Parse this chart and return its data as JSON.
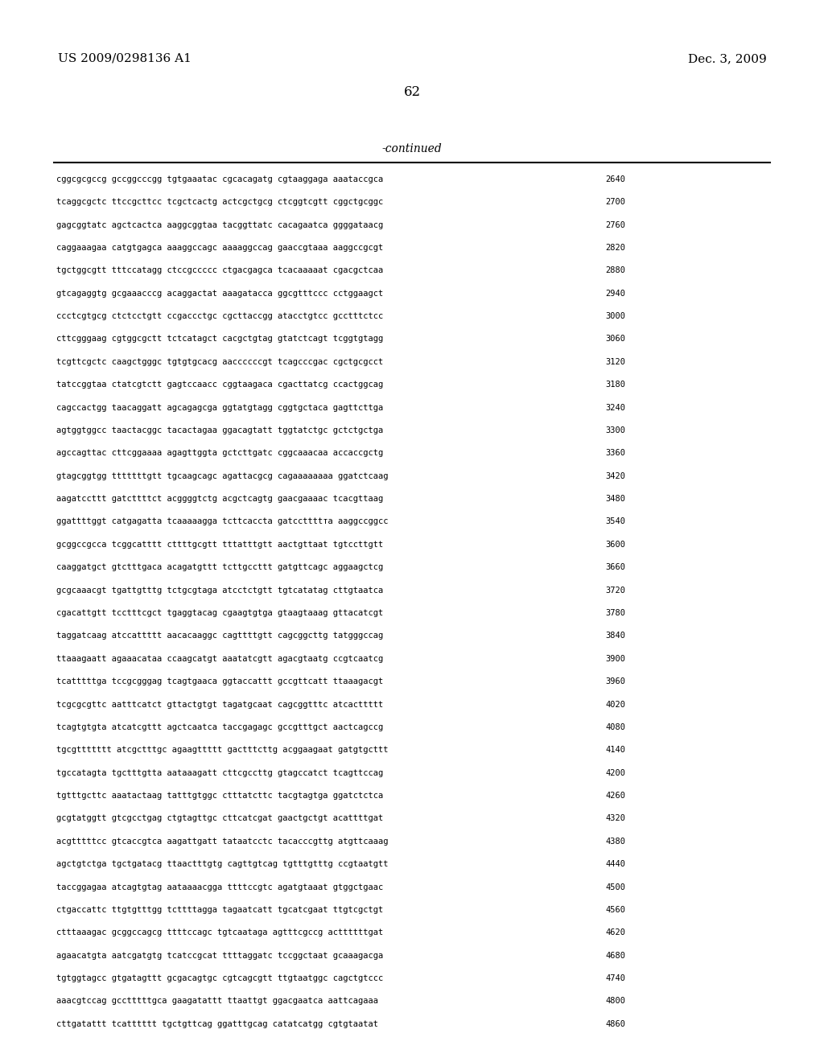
{
  "header_left": "US 2009/0298136 A1",
  "header_right": "Dec. 3, 2009",
  "page_number": "62",
  "continued_label": "-continued",
  "background_color": "#ffffff",
  "text_color": "#000000",
  "sequence_lines": [
    [
      "cggcgcgccg gccggcccgg tgtgaaatac cgcacagatg cgtaaggaga aaataccgca",
      "2640"
    ],
    [
      "tcaggcgctc ttccgcttcc tcgctcactg actcgctgcg ctcggtcgtt cggctgcggc",
      "2700"
    ],
    [
      "gagcggtatc agctcactca aaggcggtaa tacggttatc cacagaatca ggggataacg",
      "2760"
    ],
    [
      "caggaaagaa catgtgagca aaaggccagc aaaaggccag gaaccgtaaa aaggccgcgt",
      "2820"
    ],
    [
      "tgctggcgtt tttccatagg ctccgccccc ctgacgagca tcacaaaaat cgacgctcaa",
      "2880"
    ],
    [
      "gtcagaggtg gcgaaacccg acaggactat aaagatacca ggcgtttccc cctggaagct",
      "2940"
    ],
    [
      "ccctcgtgcg ctctcctgtt ccgaccctgc cgcttaccgg atacctgtcc gcctttctcc",
      "3000"
    ],
    [
      "cttcgggaag cgtggcgctt tctcatagct cacgctgtag gtatctcagt tcggtgtagg",
      "3060"
    ],
    [
      "tcgttcgctc caagctgggc tgtgtgcacg aaccccccgt tcagcccgac cgctgcgcct",
      "3120"
    ],
    [
      "tatccggtaa ctatcgtctt gagtccaacc cggtaagaca cgacttatcg ccactggcag",
      "3180"
    ],
    [
      "cagccactgg taacaggatt agcagagcga ggtatgtagg cggtgctaca gagttcttga",
      "3240"
    ],
    [
      "agtggtggcc taactacggc tacactagaa ggacagtatt tggtatctgc gctctgctga",
      "3300"
    ],
    [
      "agccagttac cttcggaaaa agagttggta gctcttgatc cggcaaacaa accaccgctg",
      "3360"
    ],
    [
      "gtagcggtgg tttttttgtt tgcaagcagc agattacgcg cagaaaaaaaа ggatctcaag",
      "3420"
    ],
    [
      "aagatccttt gatcttttct acggggtctg acgctcagtg gaacgaaaac tcacgttaag",
      "3480"
    ],
    [
      "ggattttggt catgagatta tcaaaaagga tcttcaccta gatccttttта aaggccggcc",
      "3540"
    ],
    [
      "gcggccgcca tcggcatttt cttttgcgtt tttatttgtt aactgttaat tgtccttgtt",
      "3600"
    ],
    [
      "caaggatgct gtctttgaca acagatgttt tcttgccttt gatgttcagc aggaagctcg",
      "3660"
    ],
    [
      "gcgcaaacgt tgattgtttg tctgcgtaga atcctctgtt tgtcatatag cttgtaatca",
      "3720"
    ],
    [
      "cgacattgtt tcctttcgct tgaggtacag cgaagtgtga gtaagtaaag gttacatcgt",
      "3780"
    ],
    [
      "taggatcaag atccattttt aacacaaggc cagttttgtt cagcggcttg tatgggccag",
      "3840"
    ],
    [
      "ttaaagaatt agaaacataa ccaagcatgt aaatatcgtt agacgtaatg ccgtcaatcg",
      "3900"
    ],
    [
      "tcatttttga tccgcgggag tcagtgaaca ggtaccattt gccgttcatt ttaaagacgt",
      "3960"
    ],
    [
      "tcgcgcgttc aatttcatct gttactgtgt tagatgcaat cagcggtttc atcacttttt",
      "4020"
    ],
    [
      "tcagtgtgta atcatcgttt agctcaatca taccgagagc gccgtttgct aactcagccg",
      "4080"
    ],
    [
      "tgcgttttttt atcgctttgc agaagttttt gactttcttg acggaagaat gatgtgcttt",
      "4140"
    ],
    [
      "tgccatagta tgctttgtta aataaagatt cttcgccttg gtagccatct tcagttccag",
      "4200"
    ],
    [
      "tgtttgcttc aaatactaag tatttgtggc ctttatcttc tacgtagtga ggatctctca",
      "4260"
    ],
    [
      "gcgtatggtt gtcgcctgag ctgtagttgc cttcatcgat gaactgctgt acattttgat",
      "4320"
    ],
    [
      "acgtttttcc gtcaccgtca aagattgatt tataatcctc tacacccgttg atgttcaaag",
      "4380"
    ],
    [
      "agctgtctga tgctgatacg ttaactttgtg cagttgtcag tgtttgtttg ccgtaatgtt",
      "4440"
    ],
    [
      "taccggagaa atcagtgtag aataaaacgga ttttccgtc agatgtaaat gtggctgaac",
      "4500"
    ],
    [
      "ctgaccattc ttgtgtttgg tcttttagga tagaatcatt tgcatcgaat ttgtcgctgt",
      "4560"
    ],
    [
      "ctttaaagac gcggccagcg ttttccagc tgtcaataga agtttcgccg acttttttgat",
      "4620"
    ],
    [
      "agaacatgta aatcgatgtg tcatccgcat ttttaggatc tccggctaat gcaaagacga",
      "4680"
    ],
    [
      "tgtggtagcc gtgatagttt gcgacagtgc cgtcagcgtt ttgtaatggc cagctgtccc",
      "4740"
    ],
    [
      "aaacgtccag gcctttttgca gaagatattt ttaattgt ggacgaatca aattcagaaa",
      "4800"
    ],
    [
      "cttgatattt tcatttttt tgctgttcag ggatttgcag catatcatgg cgtgtaatat",
      "4860"
    ]
  ]
}
